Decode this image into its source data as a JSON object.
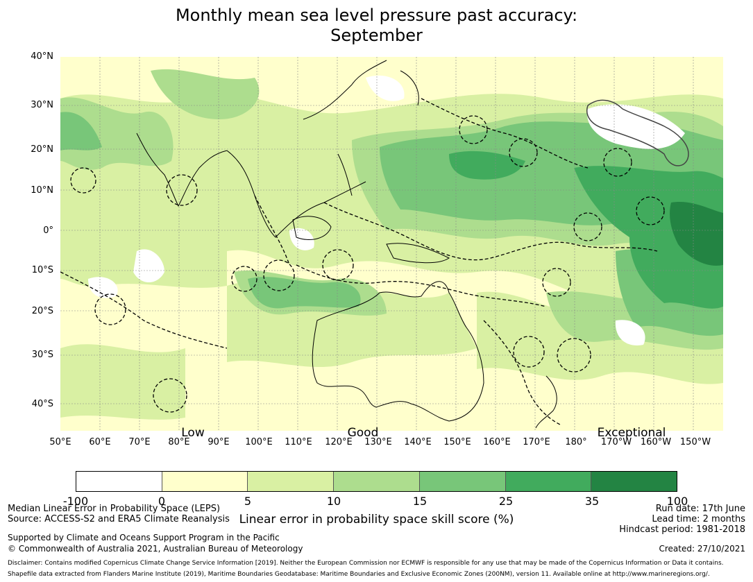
{
  "title_line1": "Monthly mean sea level pressure past accuracy:",
  "title_line2": "September",
  "lat_labels": [
    "40°N",
    "30°N",
    "20°N",
    "10°N",
    "0°",
    "10°S",
    "20°S",
    "30°S",
    "40°S"
  ],
  "lon_labels": [
    "50°E",
    "60°E",
    "70°E",
    "80°E",
    "90°E",
    "100°E",
    "110°E",
    "120°E",
    "130°E",
    "140°E",
    "150°E",
    "160°E",
    "170°E",
    "180°",
    "170°W",
    "160°W",
    "150°W"
  ],
  "category_labels": [
    "Low",
    "Good",
    "Exceptional"
  ],
  "colorbar": {
    "ticks": [
      "-100",
      "0",
      "5",
      "10",
      "15",
      "25",
      "35",
      "100"
    ],
    "colors": [
      "#ffffff",
      "#ffffcc",
      "#d9f0a3",
      "#addd8e",
      "#78c679",
      "#41ab5d",
      "#238443"
    ],
    "label": "Linear error in probability space skill score (%)"
  },
  "footer": {
    "left_line1": "Median Linear Error in Probability Space (LEPS)",
    "left_line2": "Source: ACCESS-S2 and ERA5 Climate Reanalysis",
    "left_line3": "Supported by Climate and Oceans Support Program in the Pacific",
    "left_line4": "© Commonwealth of Australia 2021, Australian Bureau of Meteorology",
    "right_line1": "Run date: 17th June",
    "right_line2": "Lead time: 2 months",
    "right_line3": "Hindcast period: 1981-2018",
    "created": "Created: 27/10/2021",
    "disclaimer1": "Disclaimer: Contains modified Copernicus Climate Change Service Information [2019]. Neither the European Commission nor ECMWF is responsible for any use that may be made of the Copernicus Information or Data it contains.",
    "disclaimer2": "Shapefile data extracted from Flanders Marine Institute (2019), Maritime Boundaries Geodatabase: Maritime Boundaries and Exclusive Economic Zones (200NM), version 11. Available online at http://www.marineregions.org/."
  }
}
